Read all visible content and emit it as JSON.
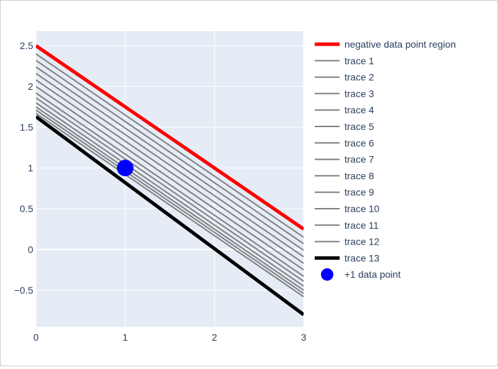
{
  "chart_data": {
    "type": "line",
    "title": "",
    "xlabel": "",
    "ylabel": "",
    "xlim": [
      0,
      3
    ],
    "ylim": [
      -0.95,
      2.68
    ],
    "x_ticks": [
      0,
      1,
      2,
      3
    ],
    "y_ticks": [
      -0.5,
      0,
      0.5,
      1,
      1.5,
      2,
      2.5
    ],
    "grid": true,
    "legend_position": "right",
    "colors": {
      "plot_bg": "#e5ecf6",
      "grid": "#ffffff",
      "negative_region": "#ff0000",
      "trace": "#808080",
      "boundary": "#000000",
      "point": "#0000ff",
      "text": "#2a3f5f"
    },
    "lines": [
      {
        "name": "negative data point region",
        "x": [
          0,
          3
        ],
        "y": [
          2.5,
          0.25
        ],
        "color": "#ff0000",
        "width": 5
      },
      {
        "name": "trace 1",
        "x": [
          0,
          3
        ],
        "y": [
          2.4,
          0.15
        ],
        "color": "#808080",
        "width": 2
      },
      {
        "name": "trace 2",
        "x": [
          0,
          3
        ],
        "y": [
          2.32,
          0.07
        ],
        "color": "#808080",
        "width": 2
      },
      {
        "name": "trace 3",
        "x": [
          0,
          3
        ],
        "y": [
          2.24,
          -0.01
        ],
        "color": "#808080",
        "width": 2
      },
      {
        "name": "trace 4",
        "x": [
          0,
          3
        ],
        "y": [
          2.16,
          -0.09
        ],
        "color": "#808080",
        "width": 2
      },
      {
        "name": "trace 5",
        "x": [
          0,
          3
        ],
        "y": [
          2.08,
          -0.17
        ],
        "color": "#808080",
        "width": 2
      },
      {
        "name": "trace 6",
        "x": [
          0,
          3
        ],
        "y": [
          2.0,
          -0.25
        ],
        "color": "#808080",
        "width": 2
      },
      {
        "name": "trace 7",
        "x": [
          0,
          3
        ],
        "y": [
          1.92,
          -0.33
        ],
        "color": "#808080",
        "width": 2
      },
      {
        "name": "trace 8",
        "x": [
          0,
          3
        ],
        "y": [
          1.86,
          -0.39
        ],
        "color": "#808080",
        "width": 2
      },
      {
        "name": "trace 9",
        "x": [
          0,
          3
        ],
        "y": [
          1.8,
          -0.45
        ],
        "color": "#808080",
        "width": 2
      },
      {
        "name": "trace 10",
        "x": [
          0,
          3
        ],
        "y": [
          1.75,
          -0.5
        ],
        "color": "#808080",
        "width": 2
      },
      {
        "name": "trace 11",
        "x": [
          0,
          3
        ],
        "y": [
          1.71,
          -0.54
        ],
        "color": "#808080",
        "width": 2
      },
      {
        "name": "trace 12",
        "x": [
          0,
          3
        ],
        "y": [
          1.67,
          -0.58
        ],
        "color": "#808080",
        "width": 2
      },
      {
        "name": "trace 13",
        "x": [
          0,
          3
        ],
        "y": [
          1.63,
          -0.8
        ],
        "color": "#000000",
        "width": 5
      }
    ],
    "points": [
      {
        "name": "+1 data point",
        "x": 1,
        "y": 1,
        "color": "#0000ff"
      }
    ]
  }
}
